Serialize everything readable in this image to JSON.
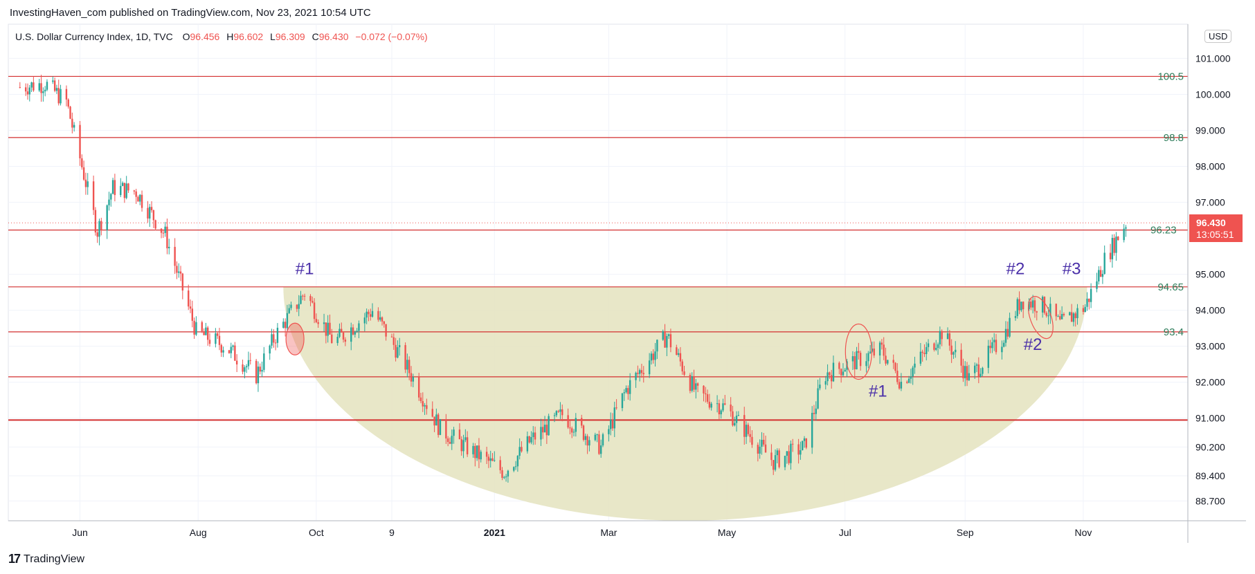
{
  "header": {
    "published": "InvestingHaven_com published on TradingView.com, Nov 23, 2021 10:54 UTC"
  },
  "legend": {
    "symbol": "U.S. Dollar Currency Index, 1D, TVC",
    "o_label": "O",
    "o": "96.456",
    "h_label": "H",
    "h": "96.602",
    "l_label": "L",
    "l": "96.309",
    "c_label": "C",
    "c": "96.430",
    "change": "−0.072 (−0.07%)"
  },
  "currency_badge": "USD",
  "price_tag": {
    "price": "96.430",
    "countdown": "13:05:51"
  },
  "brand": {
    "logo": "17",
    "name": "TradingView"
  },
  "colors": {
    "up": "#26a69a",
    "down": "#ef5350",
    "level": "#d32f2f",
    "bowl": "#e6e4c2",
    "annotation": "#4a2fa8",
    "level_label": "#2e7d5b"
  },
  "annotations": [
    {
      "text": "#1",
      "date": "2020-09-25",
      "price": 95.0
    },
    {
      "text": "#2",
      "date": "2021-09-27",
      "price": 95.0
    },
    {
      "text": "#3",
      "date": "2021-10-26",
      "price": 95.0
    },
    {
      "text": "#2",
      "date": "2021-10-06",
      "price": 92.9
    },
    {
      "text": "#1",
      "date": "2021-07-18",
      "price": 91.6
    }
  ],
  "circles": [
    {
      "date": "2020-09-20",
      "price": 93.2
    },
    {
      "date": "2021-07-08",
      "price": 92.85
    },
    {
      "date": "2021-10-10",
      "price": 93.8
    }
  ],
  "chart_data": {
    "type": "candlestick",
    "x_axis": {
      "start": "2020-04-25",
      "end": "2021-12-25",
      "tick_labels": [
        {
          "label": "Jun",
          "date": "2020-06-01"
        },
        {
          "label": "Aug",
          "date": "2020-08-01"
        },
        {
          "label": "Oct",
          "date": "2020-10-01"
        },
        {
          "label": "9",
          "date": "2020-11-09"
        },
        {
          "label": "2021",
          "date": "2021-01-01"
        },
        {
          "label": "Mar",
          "date": "2021-03-01"
        },
        {
          "label": "May",
          "date": "2021-05-01"
        },
        {
          "label": "Jul",
          "date": "2021-07-01"
        },
        {
          "label": "Sep",
          "date": "2021-09-01"
        },
        {
          "label": "Nov",
          "date": "2021-11-01"
        }
      ]
    },
    "y_axis": {
      "min": 88.15,
      "max": 101.95,
      "tick_labels": [
        "101.000",
        "100.000",
        "99.000",
        "98.000",
        "97.000",
        "95.000",
        "94.000",
        "93.000",
        "92.000",
        "91.000",
        "90.200",
        "89.400",
        "88.700"
      ]
    },
    "levels": [
      {
        "price": 100.5,
        "label": "100.5"
      },
      {
        "price": 98.8,
        "label": "98.8"
      },
      {
        "price": 96.23,
        "label": "96.23"
      },
      {
        "price": 94.65,
        "label": "94.65"
      },
      {
        "price": 93.4,
        "label": "93.4"
      },
      {
        "price": 92.15,
        "label": ""
      },
      {
        "price": 90.95,
        "label": ""
      }
    ],
    "bowl": {
      "start": "2020-09-14",
      "end": "2021-11-03",
      "top_price": 94.65,
      "bottom_price": 88.15
    },
    "keypoints": [
      {
        "date": "2020-05-01",
        "close": 100.2
      },
      {
        "date": "2020-05-14",
        "close": 100.3
      },
      {
        "date": "2020-05-25",
        "close": 99.8
      },
      {
        "date": "2020-06-10",
        "close": 96.2
      },
      {
        "date": "2020-06-18",
        "close": 97.4
      },
      {
        "date": "2020-06-30",
        "close": 97.3
      },
      {
        "date": "2020-07-15",
        "close": 96.1
      },
      {
        "date": "2020-07-31",
        "close": 93.4
      },
      {
        "date": "2020-08-15",
        "close": 93.0
      },
      {
        "date": "2020-08-31",
        "close": 92.2
      },
      {
        "date": "2020-09-10",
        "close": 93.3
      },
      {
        "date": "2020-09-25",
        "close": 94.5
      },
      {
        "date": "2020-10-10",
        "close": 93.1
      },
      {
        "date": "2020-10-30",
        "close": 94.0
      },
      {
        "date": "2020-11-15",
        "close": 92.6
      },
      {
        "date": "2020-12-04",
        "close": 90.7
      },
      {
        "date": "2020-12-20",
        "close": 90.1
      },
      {
        "date": "2021-01-06",
        "close": 89.5
      },
      {
        "date": "2021-01-20",
        "close": 90.4
      },
      {
        "date": "2021-02-05",
        "close": 91.1
      },
      {
        "date": "2021-02-25",
        "close": 90.2
      },
      {
        "date": "2021-03-10",
        "close": 91.8
      },
      {
        "date": "2021-03-31",
        "close": 93.3
      },
      {
        "date": "2021-04-15",
        "close": 91.7
      },
      {
        "date": "2021-04-30",
        "close": 91.3
      },
      {
        "date": "2021-05-25",
        "close": 89.8
      },
      {
        "date": "2021-06-10",
        "close": 90.2
      },
      {
        "date": "2021-06-20",
        "close": 92.2
      },
      {
        "date": "2021-07-07",
        "close": 92.6
      },
      {
        "date": "2021-07-20",
        "close": 92.9
      },
      {
        "date": "2021-07-30",
        "close": 92.0
      },
      {
        "date": "2021-08-20",
        "close": 93.4
      },
      {
        "date": "2021-09-03",
        "close": 92.1
      },
      {
        "date": "2021-09-20",
        "close": 93.2
      },
      {
        "date": "2021-09-30",
        "close": 94.3
      },
      {
        "date": "2021-10-12",
        "close": 94.1
      },
      {
        "date": "2021-10-20",
        "close": 93.6
      },
      {
        "date": "2021-11-02",
        "close": 94.1
      },
      {
        "date": "2021-11-12",
        "close": 95.4
      },
      {
        "date": "2021-11-23",
        "close": 96.43
      }
    ]
  }
}
